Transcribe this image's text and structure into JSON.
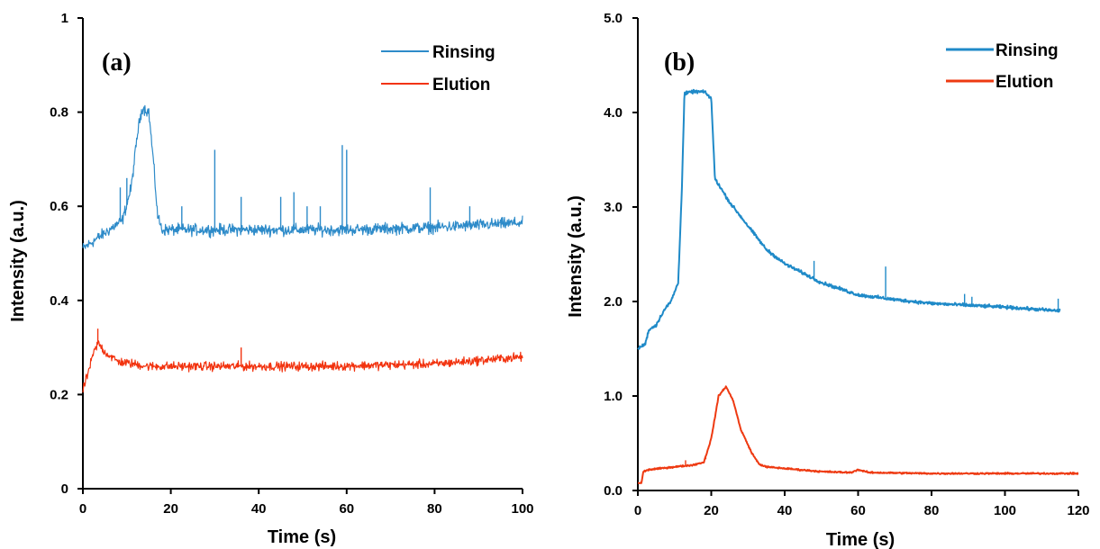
{
  "chart_data": [
    {
      "type": "line",
      "panel_label": "(a)",
      "xlabel": "Time (s)",
      "ylabel": "Intensity (a.u.)",
      "xlim": [
        0,
        100
      ],
      "ylim": [
        0,
        1
      ],
      "x_ticks": [
        "0",
        "20",
        "40",
        "60",
        "80",
        "100"
      ],
      "y_ticks": [
        "0",
        "0.2",
        "0.4",
        "0.6",
        "0.8",
        "1"
      ],
      "legend_position": "top-right",
      "grid": false,
      "series": [
        {
          "name": "Rinsing",
          "color": "#2e8bc9",
          "noise": 0.018,
          "points": [
            [
              0,
              0.51
            ],
            [
              3,
              0.53
            ],
            [
              6,
              0.55
            ],
            [
              9,
              0.57
            ],
            [
              11,
              0.64
            ],
            [
              12.5,
              0.76
            ],
            [
              13.5,
              0.81
            ],
            [
              15,
              0.8
            ],
            [
              16,
              0.7
            ],
            [
              17,
              0.58
            ],
            [
              18,
              0.55
            ],
            [
              25,
              0.55
            ],
            [
              40,
              0.55
            ],
            [
              60,
              0.55
            ],
            [
              80,
              0.555
            ],
            [
              100,
              0.565
            ]
          ],
          "spikes": [
            [
              8.5,
              0.64
            ],
            [
              10,
              0.66
            ],
            [
              22.5,
              0.6
            ],
            [
              30,
              0.72
            ],
            [
              36,
              0.62
            ],
            [
              45,
              0.62
            ],
            [
              48,
              0.63
            ],
            [
              51,
              0.6
            ],
            [
              54,
              0.6
            ],
            [
              59,
              0.73
            ],
            [
              60,
              0.72
            ],
            [
              79,
              0.64
            ],
            [
              88,
              0.6
            ]
          ]
        },
        {
          "name": "Elution",
          "color": "#f2330f",
          "noise": 0.014,
          "points": [
            [
              0,
              0.21
            ],
            [
              1,
              0.24
            ],
            [
              2.5,
              0.29
            ],
            [
              3.5,
              0.31
            ],
            [
              5,
              0.29
            ],
            [
              8,
              0.27
            ],
            [
              15,
              0.26
            ],
            [
              40,
              0.26
            ],
            [
              55,
              0.26
            ],
            [
              80,
              0.265
            ],
            [
              100,
              0.28
            ]
          ],
          "spikes": [
            [
              3.4,
              0.34
            ],
            [
              36,
              0.3
            ]
          ]
        }
      ]
    },
    {
      "type": "line",
      "panel_label": "(b)",
      "xlabel": "Time (s)",
      "ylabel": "Intensity (a.u.)",
      "xlim": [
        0,
        120
      ],
      "ylim": [
        0,
        5
      ],
      "x_ticks": [
        "0",
        "20",
        "40",
        "60",
        "80",
        "100",
        "120"
      ],
      "y_ticks": [
        "0.0",
        "1.0",
        "2.0",
        "3.0",
        "4.0",
        "5.0"
      ],
      "legend_position": "top-right",
      "grid": false,
      "series": [
        {
          "name": "Rinsing",
          "color": "#1f8ac8",
          "noise": 0.025,
          "points": [
            [
              0,
              1.5
            ],
            [
              2,
              1.55
            ],
            [
              3,
              1.7
            ],
            [
              5,
              1.75
            ],
            [
              7,
              1.9
            ],
            [
              9,
              2.0
            ],
            [
              11,
              2.2
            ],
            [
              12,
              3.2
            ],
            [
              12.7,
              4.2
            ],
            [
              15,
              4.22
            ],
            [
              18,
              4.22
            ],
            [
              20,
              4.15
            ],
            [
              21,
              3.3
            ],
            [
              25,
              3.05
            ],
            [
              30,
              2.8
            ],
            [
              35,
              2.55
            ],
            [
              40,
              2.4
            ],
            [
              50,
              2.2
            ],
            [
              60,
              2.07
            ],
            [
              70,
              2.02
            ],
            [
              80,
              1.98
            ],
            [
              100,
              1.94
            ],
            [
              115,
              1.9
            ]
          ],
          "spikes": [
            [
              48,
              2.43
            ],
            [
              67.5,
              2.37
            ],
            [
              89,
              2.08
            ],
            [
              91,
              2.05
            ],
            [
              114.5,
              2.03
            ]
          ]
        },
        {
          "name": "Elution",
          "color": "#ee3a12",
          "noise": 0.012,
          "points": [
            [
              0,
              0.08
            ],
            [
              1,
              0.08
            ],
            [
              1.5,
              0.2
            ],
            [
              3,
              0.22
            ],
            [
              10,
              0.25
            ],
            [
              15,
              0.27
            ],
            [
              18,
              0.3
            ],
            [
              20,
              0.55
            ],
            [
              22,
              1.0
            ],
            [
              24,
              1.1
            ],
            [
              26,
              0.95
            ],
            [
              28,
              0.65
            ],
            [
              31,
              0.4
            ],
            [
              33,
              0.28
            ],
            [
              35,
              0.25
            ],
            [
              50,
              0.2
            ],
            [
              58,
              0.19
            ],
            [
              60,
              0.22
            ],
            [
              63,
              0.19
            ],
            [
              80,
              0.18
            ],
            [
              100,
              0.18
            ],
            [
              120,
              0.18
            ]
          ],
          "spikes": [
            [
              13,
              0.32
            ],
            [
              18.5,
              0.33
            ]
          ]
        }
      ]
    }
  ]
}
